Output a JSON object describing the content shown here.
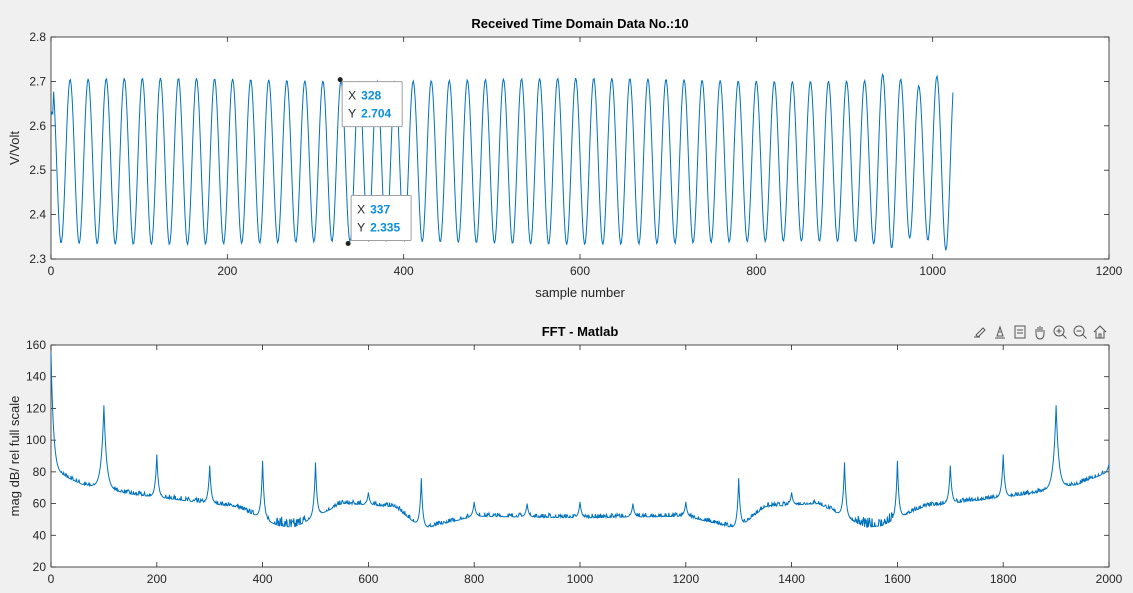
{
  "chart_data": [
    {
      "type": "line",
      "title": "Received Time Domain Data No.:10",
      "xlabel": "sample number",
      "ylabel": "V/Volt",
      "xlim": [
        0,
        1200
      ],
      "ylim": [
        2.3,
        2.8
      ],
      "xticks": [
        "0",
        "200",
        "400",
        "600",
        "800",
        "1000",
        "1200"
      ],
      "yticks": [
        "2.3",
        "2.4",
        "2.5",
        "2.6",
        "2.7",
        "2.8"
      ],
      "grid": false,
      "color": "#0072bd",
      "signal": {
        "n_samples": 1024,
        "offset": 2.52,
        "amplitude": 0.184,
        "period_samples": 20.48,
        "peak_value": 2.704,
        "trough_value": 2.335
      },
      "datatips": [
        {
          "x_label": "X",
          "x_value": "328",
          "y_label": "Y",
          "y_value": "2.704",
          "x": 328,
          "y": 2.704
        },
        {
          "x_label": "X",
          "x_value": "337",
          "y_label": "Y",
          "y_value": "2.335",
          "x": 337,
          "y": 2.335
        }
      ]
    },
    {
      "type": "line",
      "title": "FFT -  Matlab",
      "xlabel": "",
      "ylabel": "mag dB/ rel full scale",
      "xlim": [
        0,
        2000
      ],
      "ylim": [
        20,
        160
      ],
      "xticks": [
        "0",
        "200",
        "400",
        "600",
        "800",
        "1000",
        "1200",
        "1400",
        "1600",
        "1800",
        "2000"
      ],
      "yticks": [
        "20",
        "40",
        "60",
        "80",
        "100",
        "120",
        "140",
        "160"
      ],
      "grid": false,
      "color": "#0072bd",
      "peaks": [
        {
          "x": 0,
          "y": 155
        },
        {
          "x": 100,
          "y": 122
        },
        {
          "x": 200,
          "y": 91
        },
        {
          "x": 300,
          "y": 84
        },
        {
          "x": 400,
          "y": 87
        },
        {
          "x": 500,
          "y": 86
        },
        {
          "x": 600,
          "y": 67
        },
        {
          "x": 700,
          "y": 76
        },
        {
          "x": 800,
          "y": 61
        },
        {
          "x": 900,
          "y": 60
        },
        {
          "x": 1000,
          "y": 61
        },
        {
          "x": 1100,
          "y": 60
        },
        {
          "x": 1200,
          "y": 61
        },
        {
          "x": 1300,
          "y": 76
        },
        {
          "x": 1400,
          "y": 67
        },
        {
          "x": 1500,
          "y": 86
        },
        {
          "x": 1600,
          "y": 87
        },
        {
          "x": 1700,
          "y": 84
        },
        {
          "x": 1800,
          "y": 91
        },
        {
          "x": 1900,
          "y": 122
        },
        {
          "x": 2000,
          "y": 85
        }
      ],
      "baseline": [
        {
          "x": 20,
          "y": 78
        },
        {
          "x": 60,
          "y": 72
        },
        {
          "x": 150,
          "y": 66
        },
        {
          "x": 250,
          "y": 62
        },
        {
          "x": 350,
          "y": 58
        },
        {
          "x": 430,
          "y": 46
        },
        {
          "x": 460,
          "y": 45
        },
        {
          "x": 550,
          "y": 60
        },
        {
          "x": 650,
          "y": 58
        },
        {
          "x": 702,
          "y": 44
        },
        {
          "x": 800,
          "y": 52
        },
        {
          "x": 1000,
          "y": 51
        },
        {
          "x": 1200,
          "y": 52
        },
        {
          "x": 1298,
          "y": 44
        },
        {
          "x": 1350,
          "y": 58
        },
        {
          "x": 1450,
          "y": 60
        },
        {
          "x": 1540,
          "y": 45
        },
        {
          "x": 1570,
          "y": 46
        },
        {
          "x": 1650,
          "y": 58
        },
        {
          "x": 1750,
          "y": 62
        },
        {
          "x": 1850,
          "y": 66
        },
        {
          "x": 1940,
          "y": 72
        },
        {
          "x": 2000,
          "y": 80
        }
      ]
    }
  ],
  "toolbar": {
    "icons": [
      "brush-icon",
      "data-cursor-icon",
      "legend-icon",
      "pan-icon",
      "zoom-in-icon",
      "zoom-out-icon",
      "home-icon"
    ]
  }
}
